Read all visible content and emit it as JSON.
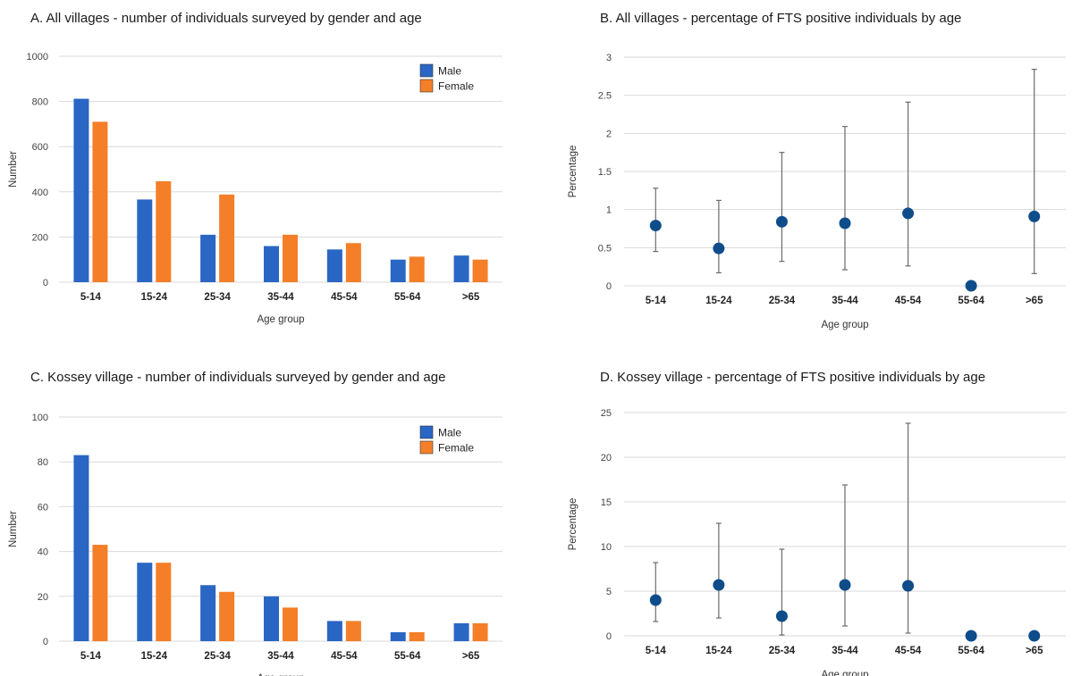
{
  "colors": {
    "male": "#2a66c4",
    "female": "#f47f28",
    "point": "#0f4c8a",
    "errorbar": "#6b6b6b",
    "grid": "#d9d9d9"
  },
  "chart_data": [
    {
      "id": "A",
      "type": "bar",
      "title": "A. All villages - number of individuals surveyed by gender and age",
      "xlabel": "Age group",
      "ylabel": "Number",
      "ylim": [
        0,
        1000
      ],
      "yticks": [
        0,
        200,
        400,
        600,
        800,
        1000
      ],
      "categories": [
        "5-14",
        "15-24",
        "25-34",
        "35-44",
        "45-54",
        "55-64",
        ">65"
      ],
      "series": [
        {
          "name": "Male",
          "values": [
            812,
            366,
            210,
            160,
            145,
            100,
            118
          ]
        },
        {
          "name": "Female",
          "values": [
            710,
            447,
            388,
            210,
            173,
            113,
            100
          ]
        }
      ],
      "legend": "top-right",
      "grid": true
    },
    {
      "id": "B",
      "type": "scatter",
      "title": "B. All villages - percentage of FTS positive individuals by age",
      "xlabel": "Age group",
      "ylabel": "Percentage",
      "ylim": [
        0,
        3
      ],
      "yticks": [
        0,
        0.5,
        1,
        1.5,
        2,
        2.5,
        3
      ],
      "categories": [
        "5-14",
        "15-24",
        "25-34",
        "35-44",
        "45-54",
        "55-64",
        ">65"
      ],
      "values": [
        0.79,
        0.49,
        0.84,
        0.82,
        0.95,
        0,
        0.91
      ],
      "error_low": [
        0.45,
        0.17,
        0.32,
        0.21,
        0.26,
        null,
        0.16
      ],
      "error_high": [
        1.28,
        1.12,
        1.75,
        2.09,
        2.41,
        null,
        2.84
      ],
      "grid": true
    },
    {
      "id": "C",
      "type": "bar",
      "title": "C. Kossey village - number of individuals surveyed by gender and age",
      "xlabel": "Age group",
      "ylabel": "Number",
      "ylim": [
        0,
        100
      ],
      "yticks": [
        0,
        20,
        40,
        60,
        80,
        100
      ],
      "categories": [
        "5-14",
        "15-24",
        "25-34",
        "35-44",
        "45-54",
        "55-64",
        ">65"
      ],
      "series": [
        {
          "name": "Male",
          "values": [
            83,
            35,
            25,
            20,
            9,
            4,
            8
          ]
        },
        {
          "name": "Female",
          "values": [
            43,
            35,
            22,
            15,
            9,
            4,
            8
          ]
        }
      ],
      "legend": "top-right",
      "grid": true
    },
    {
      "id": "D",
      "type": "scatter",
      "title": "D. Kossey village - percentage of FTS positive individuals by age",
      "xlabel": "Age group",
      "ylabel": "Percentage",
      "ylim": [
        0,
        25
      ],
      "yticks": [
        0,
        5,
        10,
        15,
        20,
        25
      ],
      "categories": [
        "5-14",
        "15-24",
        "25-34",
        "35-44",
        "45-54",
        "55-64",
        ">65"
      ],
      "values": [
        4.0,
        5.7,
        2.2,
        5.7,
        5.6,
        0,
        0
      ],
      "error_low": [
        1.6,
        2.0,
        0.1,
        1.1,
        0.3,
        null,
        null
      ],
      "error_high": [
        8.2,
        12.6,
        9.7,
        16.9,
        23.8,
        null,
        null
      ],
      "grid": true
    }
  ]
}
